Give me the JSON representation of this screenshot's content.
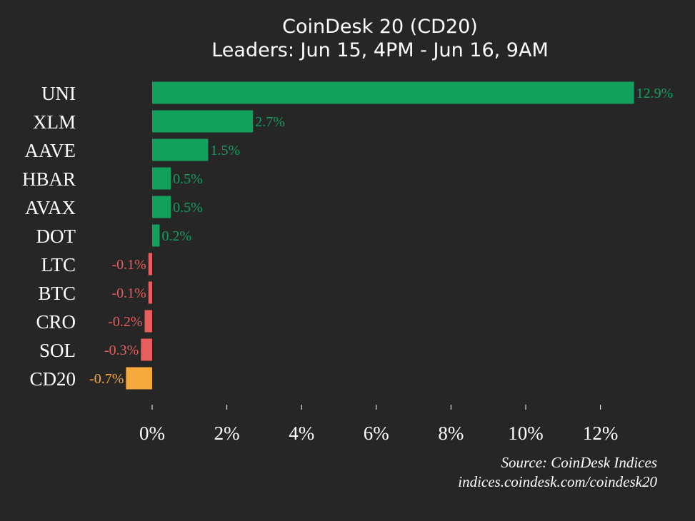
{
  "chart_data": {
    "type": "bar",
    "orientation": "horizontal",
    "title": "CoinDesk 20 (CD20)",
    "subtitle": "Leaders: Jun 15, 4PM - Jun 16, 9AM",
    "categories": [
      "UNI",
      "XLM",
      "AAVE",
      "HBAR",
      "AVAX",
      "DOT",
      "LTC",
      "BTC",
      "CRO",
      "SOL",
      "CD20"
    ],
    "values": [
      12.9,
      2.7,
      1.5,
      0.5,
      0.5,
      0.2,
      -0.1,
      -0.1,
      -0.2,
      -0.3,
      -0.7
    ],
    "value_labels": [
      "12.9%",
      "2.7%",
      "1.5%",
      "0.5%",
      "0.5%",
      "0.2%",
      "-0.1%",
      "-0.1%",
      "-0.2%",
      "-0.3%",
      "-0.7%"
    ],
    "xticks": [
      0,
      2,
      4,
      6,
      8,
      10,
      12
    ],
    "xtick_labels": [
      "0%",
      "2%",
      "4%",
      "6%",
      "8%",
      "10%",
      "12%"
    ],
    "xlim": [
      -0.7,
      12.9
    ],
    "grid": false,
    "colors": {
      "positive": "#12a05c",
      "negative": "#e85d5d",
      "index": "#f5a93b",
      "background": "#262626",
      "text": "#ffffff"
    },
    "highlight_category": "CD20"
  },
  "footer": {
    "source": "Source: CoinDesk Indices",
    "url": "indices.coindesk.com/coindesk20"
  }
}
